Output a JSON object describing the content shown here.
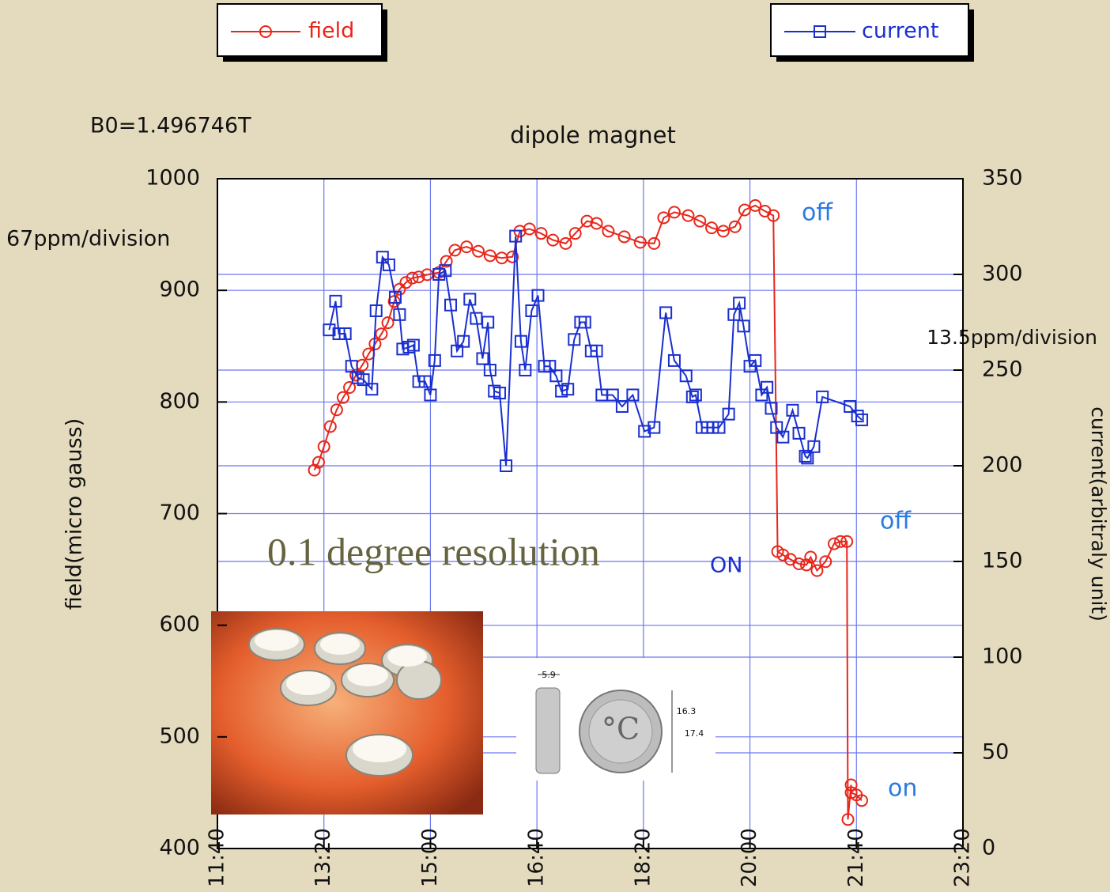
{
  "chart_data": {
    "type": "line",
    "title": "dipole magnet",
    "subtitle": "B0=1.496746T",
    "y_label": "field(micro gauss)",
    "y2_label": "current(arbitraly unit)",
    "y_scale_note": "67ppm/division",
    "y2_scale_note": "13.5ppm/division",
    "xlim": [
      700,
      1400
    ],
    "xticks": [
      {
        "value": 700,
        "label": "11:40"
      },
      {
        "value": 800,
        "label": "13:20"
      },
      {
        "value": 900,
        "label": "15:00"
      },
      {
        "value": 1000,
        "label": "16:40"
      },
      {
        "value": 1100,
        "label": "18:20"
      },
      {
        "value": 1200,
        "label": "20:00"
      },
      {
        "value": 1300,
        "label": "21:40"
      },
      {
        "value": 1400,
        "label": "23:20"
      }
    ],
    "ylim": [
      400,
      1000
    ],
    "yticks": [
      400,
      500,
      600,
      700,
      800,
      900,
      1000
    ],
    "y2lim": [
      0,
      350
    ],
    "y2ticks": [
      0,
      50,
      100,
      150,
      200,
      250,
      300,
      350
    ],
    "grid": true,
    "series": [
      {
        "name": "field",
        "color": "#e8261a",
        "marker": "circle",
        "x": [
          791,
          795,
          800,
          806,
          812,
          818,
          824,
          830,
          836,
          842,
          848,
          854,
          860,
          866,
          871,
          877,
          883,
          889,
          897,
          908,
          915,
          923,
          934,
          945,
          956,
          967,
          977,
          984,
          993,
          1004,
          1015,
          1027,
          1036,
          1047,
          1056,
          1067,
          1082,
          1097,
          1110,
          1119,
          1129,
          1142,
          1153,
          1164,
          1175,
          1186,
          1195,
          1205,
          1214,
          1222,
          1226,
          1231,
          1238,
          1246,
          1253,
          1257,
          1263,
          1271,
          1279,
          1285,
          1291,
          1292,
          1295,
          1295,
          1300,
          1305
        ],
        "values": [
          739,
          746,
          760,
          778,
          793,
          804,
          813,
          824,
          833,
          843,
          852,
          861,
          871,
          890,
          901,
          907,
          911,
          912,
          914,
          916,
          926,
          936,
          939,
          935,
          931,
          929,
          930,
          953,
          955,
          951,
          945,
          942,
          951,
          962,
          960,
          953,
          948,
          943,
          942,
          965,
          970,
          967,
          962,
          956,
          953,
          957,
          972,
          976,
          971,
          967,
          666,
          663,
          659,
          655,
          654,
          661,
          649,
          657,
          673,
          675,
          675,
          426,
          457,
          450,
          448,
          443
        ]
      },
      {
        "name": "current",
        "color": "#1a2fd0",
        "marker": "square",
        "axis": "y2",
        "x": [
          805,
          811,
          814,
          820,
          826,
          832,
          837,
          845,
          849,
          855,
          861,
          867,
          871,
          874,
          880,
          884,
          889,
          895,
          900,
          904,
          908,
          914,
          919,
          925,
          931,
          937,
          943,
          949,
          954,
          956,
          960,
          965,
          971,
          980,
          985,
          989,
          995,
          1001,
          1007,
          1012,
          1018,
          1023,
          1029,
          1035,
          1041,
          1045,
          1051,
          1056,
          1061,
          1071,
          1080,
          1090,
          1101,
          1110,
          1121,
          1129,
          1140,
          1146,
          1149,
          1155,
          1160,
          1165,
          1171,
          1180,
          1185,
          1190,
          1194,
          1200,
          1205,
          1211,
          1216,
          1220,
          1225,
          1231,
          1240,
          1246,
          1252,
          1254,
          1260,
          1268,
          1294,
          1301,
          1305
        ],
        "values": [
          271,
          286,
          269,
          269,
          252,
          246,
          245,
          240,
          281,
          309,
          305,
          288,
          279,
          261,
          262,
          263,
          244,
          244,
          237,
          255,
          300,
          302,
          284,
          260,
          265,
          287,
          277,
          256,
          275,
          250,
          239,
          238,
          200,
          320,
          265,
          250,
          281,
          289,
          252,
          252,
          247,
          239,
          240,
          266,
          275,
          275,
          260,
          260,
          237,
          237,
          231,
          237,
          218,
          220,
          280,
          255,
          247,
          236,
          237,
          220,
          220,
          220,
          220,
          227,
          279,
          285,
          273,
          252,
          255,
          237,
          241,
          230,
          220,
          215,
          229,
          217,
          205,
          204,
          210,
          236,
          231,
          226,
          224
        ]
      }
    ],
    "annotations": [
      {
        "text": "off",
        "color": "#2a7be0"
      },
      {
        "text": "off",
        "color": "#2a7be0"
      },
      {
        "text": "on",
        "color": "#2a7be0"
      },
      {
        "text": "ON",
        "color": "#1a2fd0"
      },
      {
        "text": "0.1 degree resolution",
        "color": "#66643f"
      }
    ]
  },
  "inset": {
    "labels": [
      "5.9",
      "16.3",
      "17.4",
      "°C"
    ]
  }
}
